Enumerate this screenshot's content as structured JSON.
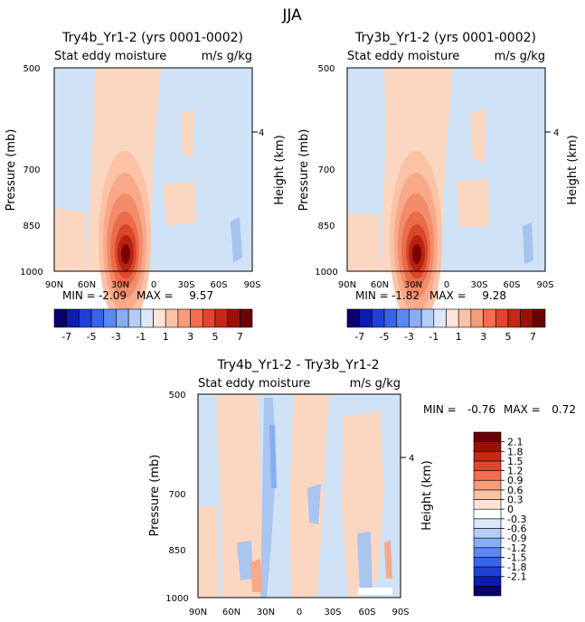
{
  "chart_data": {
    "title": "JJA",
    "colors": {
      "panel_bg": "#cfe2f6",
      "low_pos": "#fbd7c2"
    },
    "panels": [
      {
        "type": "heatmap",
        "title": "Try4b_Yr1-2 (yrs 0001-0002)",
        "subtitle_left": "Stat eddy moisture",
        "subtitle_right": "m/s g/kg",
        "ylabel": "Pressure (mb)",
        "ylabel_right": "Height (km)",
        "yticks": [
          "500",
          "700",
          "850",
          "1000"
        ],
        "yticks_right": [
          "4"
        ],
        "xticks": [
          "90N",
          "60N",
          "30N",
          "0",
          "30S",
          "60S",
          "90S"
        ],
        "min_label": "MIN =",
        "min": "-2.09",
        "max_label": "MAX =",
        "max": "9.57"
      },
      {
        "type": "heatmap",
        "title": "Try3b_Yr1-2 (yrs 0001-0002)",
        "subtitle_left": "Stat eddy moisture",
        "subtitle_right": "m/s g/kg",
        "ylabel": "Pressure (mb)",
        "ylabel_right": "Height (km)",
        "yticks": [
          "500",
          "700",
          "850",
          "1000"
        ],
        "yticks_right": [
          "4"
        ],
        "xticks": [
          "90N",
          "60N",
          "30N",
          "0",
          "30S",
          "60S",
          "90S"
        ],
        "min_label": "MIN =",
        "min": "-1.82",
        "max_label": "MAX =",
        "max": "9.28"
      },
      {
        "type": "heatmap",
        "title": "Try4b_Yr1-2 - Try3b_Yr1-2",
        "subtitle_left": "Stat eddy moisture",
        "subtitle_right": "m/s g/kg",
        "ylabel": "Pressure (mb)",
        "ylabel_right": "Height (km)",
        "yticks": [
          "500",
          "700",
          "850",
          "1000"
        ],
        "yticks_right": [
          "4"
        ],
        "xticks": [
          "90N",
          "60N",
          "30N",
          "0",
          "30S",
          "60S",
          "90S"
        ],
        "min_label": "MIN =",
        "min": "-0.76",
        "max_label": "MAX =",
        "max": "0.72"
      }
    ],
    "top_colorbar": {
      "colors": [
        "#08006e",
        "#0d1bb0",
        "#1f3fd6",
        "#3864e8",
        "#5b89f0",
        "#88adf4",
        "#b3cdf7",
        "#dbe8fa",
        "#fde4d6",
        "#fbc2a6",
        "#f79c7a",
        "#f16f4e",
        "#e1462c",
        "#c42816",
        "#981207",
        "#6b0202"
      ],
      "labels": [
        "-7",
        "-5",
        "-3",
        "-1",
        "1",
        "3",
        "5",
        "7"
      ]
    },
    "diff_colorbar": {
      "colors": [
        "#08006e",
        "#0d1bb0",
        "#1f3fd6",
        "#3864e8",
        "#5b89f0",
        "#88adf4",
        "#b3cdf7",
        "#dbe8fa",
        "#fdfdfd",
        "#fde4d6",
        "#fbc2a6",
        "#f79c7a",
        "#f16f4e",
        "#e1462c",
        "#c42816",
        "#981207",
        "#6b0202"
      ],
      "labels": [
        "2.1",
        "1.8",
        "1.5",
        "1.2",
        "0.9",
        "0.6",
        "0.3",
        "0",
        "-0.3",
        "-0.6",
        "-0.9",
        "-1.2",
        "-1.5",
        "-1.8",
        "-2.1"
      ]
    }
  }
}
